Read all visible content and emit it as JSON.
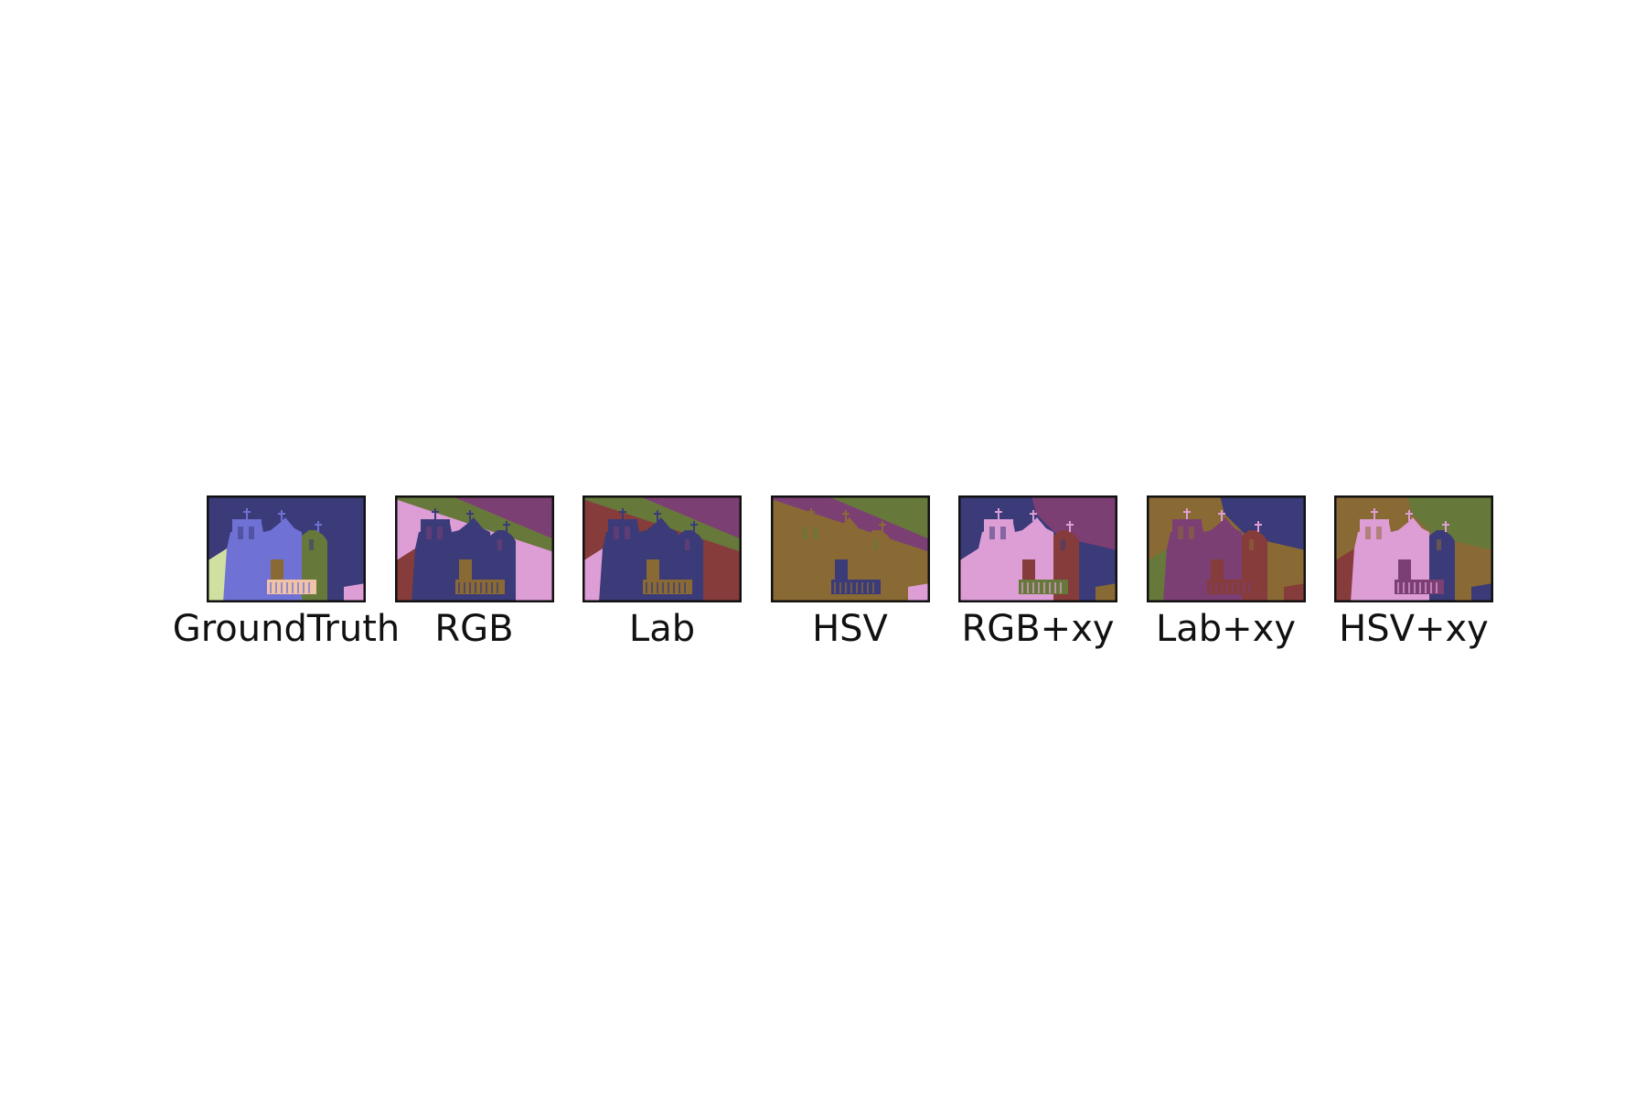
{
  "palette": {
    "navy": "#3a3b78",
    "periwinkle": "#6f71d4",
    "olive": "#66793a",
    "ochre": "#8a6a34",
    "maroon": "#853c3a",
    "pink": "#dd9ed6",
    "plum": "#7c3f74",
    "pale_green": "#cfe0a0",
    "peach": "#f0c3a8",
    "frame": "#111111"
  },
  "panels": [
    {
      "label": "GroundTruth",
      "regions": {
        "sky": "navy",
        "church": "periwinkle",
        "left_tower": "periwinkle",
        "right_tower": "olive",
        "left_ground": "pale_green",
        "right_ground": "pink",
        "balcony": "peach",
        "door": "ochre",
        "crosses": "periwinkle",
        "band": null
      }
    },
    {
      "label": "RGB",
      "regions": {
        "sky": "plum",
        "church": "navy",
        "left_tower": "navy",
        "right_tower": "navy",
        "left_ground": "maroon",
        "right_ground": "pink",
        "balcony": "ochre",
        "door": "ochre",
        "crosses": "navy",
        "band": "olive",
        "under_band": "pink"
      }
    },
    {
      "label": "Lab",
      "regions": {
        "sky": "plum",
        "church": "navy",
        "left_tower": "navy",
        "right_tower": "navy",
        "left_ground": "pink",
        "right_ground": "maroon",
        "balcony": "ochre",
        "door": "ochre",
        "crosses": "navy",
        "band": "olive",
        "under_band": "maroon"
      }
    },
    {
      "label": "HSV",
      "regions": {
        "sky": "olive",
        "church": "ochre",
        "left_tower": "ochre",
        "right_tower": "ochre",
        "left_ground": "ochre",
        "right_ground": "pink",
        "balcony": "navy",
        "door": "navy",
        "crosses": "ochre",
        "band": "plum",
        "under_band": "ochre"
      }
    },
    {
      "label": "RGB+xy",
      "regions": {
        "sky": "navy",
        "sky_right": "plum",
        "church": "pink",
        "left_tower": "pink",
        "right_tower": "maroon",
        "left_ground": "pink",
        "right_ground": "ochre",
        "balcony": "olive",
        "door": "maroon",
        "crosses": "pink",
        "band": null
      }
    },
    {
      "label": "Lab+xy",
      "regions": {
        "sky": "ochre",
        "sky_right": "navy",
        "church": "plum",
        "left_tower": "plum",
        "right_tower": "maroon",
        "left_ground": "olive",
        "right_ground": "maroon",
        "balcony": "maroon",
        "door": "maroon",
        "crosses": "pink",
        "band": null
      }
    },
    {
      "label": "HSV+xy",
      "regions": {
        "sky": "ochre",
        "sky_right": "olive",
        "church": "pink",
        "left_tower": "pink",
        "right_tower": "navy",
        "left_ground": "maroon",
        "right_ground": "navy",
        "balcony": "plum",
        "door": "plum",
        "crosses": "pink",
        "band": null
      }
    }
  ]
}
